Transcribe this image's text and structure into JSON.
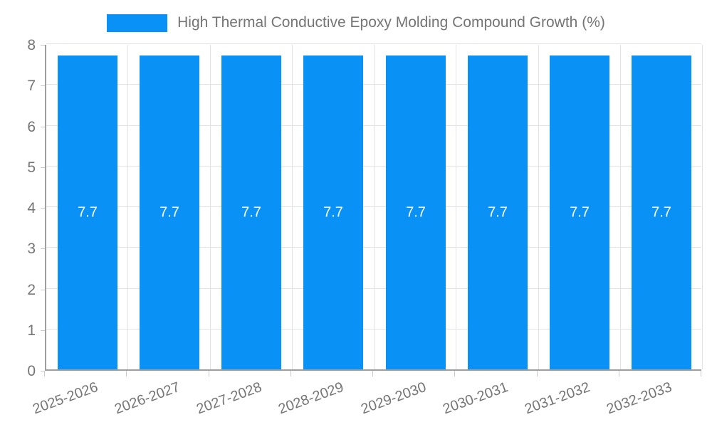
{
  "legend": {
    "label": "High Thermal Conductive Epoxy Molding Compound Growth (%)"
  },
  "chart_data": {
    "type": "bar",
    "title": "High Thermal Conductive Epoxy Molding Compound Growth (%)",
    "categories": [
      "2025-2026",
      "2026-2027",
      "2027-2028",
      "2028-2029",
      "2029-2030",
      "2030-2031",
      "2031-2032",
      "2032-2033"
    ],
    "values": [
      7.7,
      7.7,
      7.7,
      7.7,
      7.7,
      7.7,
      7.7,
      7.7
    ],
    "bar_labels": [
      "7.7",
      "7.7",
      "7.7",
      "7.7",
      "7.7",
      "7.7",
      "7.7",
      "7.7"
    ],
    "xlabel": "",
    "ylabel": "",
    "ylim": [
      0,
      8
    ],
    "ytick_step": 1,
    "ytick_labels": [
      "0",
      "1",
      "2",
      "3",
      "4",
      "5",
      "6",
      "7",
      "8"
    ],
    "grid": true,
    "legend_position": "top",
    "x_label_rotation_deg": -20,
    "colors": {
      "bar": "#0a91f5",
      "bar_value_text": "#ffffff",
      "axis_text": "#757575",
      "grid_line": "#e3e3e3",
      "tick_line": "#c9c9c9",
      "axis_line": "#9e9e9e",
      "background": "#ffffff"
    }
  }
}
